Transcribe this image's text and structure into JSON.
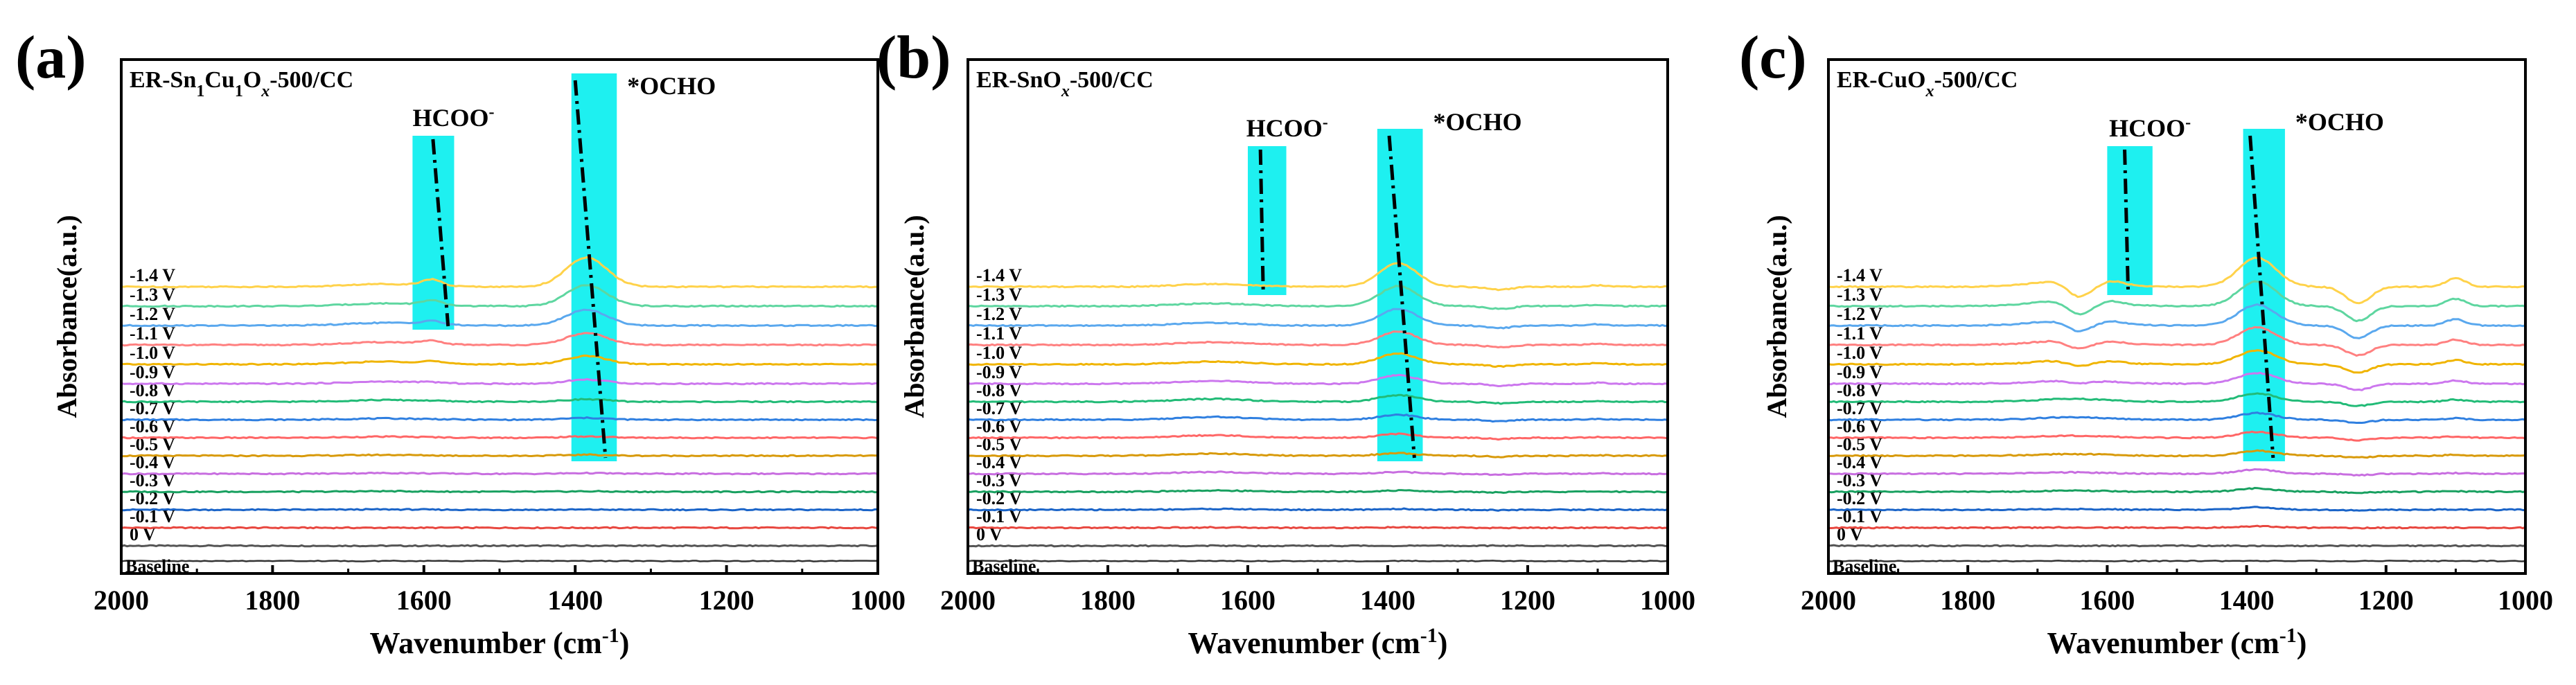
{
  "chart_data": [
    {
      "type": "line",
      "panel": "(a)",
      "sample_main": "ER-Sn",
      "sample_sub1": "1",
      "sample_mid": "Cu",
      "sample_sub2": "1",
      "sample_mid2": "O",
      "sample_sub3": "x",
      "sample_tail": "-500/CC",
      "xlabel_main": "Wavenumber (cm",
      "xlabel_sup": "-1",
      "xlabel_end": ")",
      "ylabel": "Absorbance(a.u.)",
      "xlim": [
        2000,
        1000
      ],
      "xticks": [
        "2000",
        "1800",
        "1600",
        "1400",
        "1200",
        "1000"
      ],
      "hcoo_label": "HCOO",
      "hcoo_sup": "-",
      "ocho_label": "*OCHO",
      "hcoo_band": [
        1615,
        1560
      ],
      "ocho_band": [
        1405,
        1345
      ],
      "hcoo_line": [
        1588,
        1568
      ],
      "ocho_line": [
        1400,
        1360
      ],
      "baseline_label": "Baseline",
      "voltages": [
        "0 V",
        "-0.1 V",
        "-0.2 V",
        "-0.3 V",
        "-0.4 V",
        "-0.5 V",
        "-0.6 V",
        "-0.7 V",
        "-0.8 V",
        "-0.9 V",
        "-1.0 V",
        "-1.1 V",
        "-1.2 V",
        "-1.3 V",
        "-1.4 V"
      ],
      "series_params": {
        "hcoo_amp": [
          0,
          0,
          0,
          0,
          0,
          0,
          0.01,
          0.02,
          0.04,
          0.1,
          0.25,
          0.35,
          0.45,
          0.55,
          0.75
        ],
        "ocho_amp": [
          0,
          0,
          0.02,
          0.05,
          0.08,
          0.12,
          0.16,
          0.22,
          0.3,
          0.5,
          1.0,
          1.4,
          1.9,
          2.5,
          3.5
        ],
        "hump_1650_amp": [
          0,
          0,
          0.05,
          0.08,
          0.1,
          0.12,
          0.15,
          0.18,
          0.25,
          0.3,
          0.4,
          0.4,
          0.4,
          0.4,
          0.4
        ],
        "dip_1250_amp": [
          0,
          0,
          0,
          0,
          0,
          0,
          0,
          0,
          0,
          0,
          0,
          0,
          0,
          0,
          0
        ]
      }
    },
    {
      "type": "line",
      "panel": "(b)",
      "sample_main": "ER-SnO",
      "sample_sub1": "x",
      "sample_tail": "-500/CC",
      "xlabel_main": "Wavenumber (cm",
      "xlabel_sup": "-1",
      "xlabel_end": ")",
      "ylabel": "Absorbance(a.u.)",
      "xlim": [
        2000,
        1000
      ],
      "xticks": [
        "2000",
        "1800",
        "1600",
        "1400",
        "1200",
        "1000"
      ],
      "hcoo_label": "HCOO",
      "hcoo_sup": "-",
      "ocho_label": "*OCHO",
      "hcoo_band": [
        1600,
        1545
      ],
      "ocho_band": [
        1415,
        1350
      ],
      "hcoo_line": [
        1582,
        1578
      ],
      "ocho_line": [
        1398,
        1362
      ],
      "baseline_label": "Baseline",
      "voltages": [
        "0 V",
        "-0.1 V",
        "-0.2 V",
        "-0.3 V",
        "-0.4 V",
        "-0.5 V",
        "-0.6 V",
        "-0.7 V",
        "-0.8 V",
        "-0.9 V",
        "-1.0 V",
        "-1.1 V",
        "-1.2 V",
        "-1.3 V",
        "-1.4 V"
      ],
      "series_params": {
        "hcoo_amp": [
          0,
          0,
          0,
          0,
          0,
          0,
          0,
          0,
          0,
          0,
          0,
          0,
          0,
          0,
          0
        ],
        "ocho_amp": [
          0,
          0.05,
          0.1,
          0.15,
          0.2,
          0.3,
          0.45,
          0.6,
          0.8,
          1.0,
          1.3,
          1.6,
          2.0,
          2.4,
          2.8
        ],
        "hump_1650_amp": [
          0,
          0.05,
          0.12,
          0.18,
          0.25,
          0.3,
          0.35,
          0.4,
          0.4,
          0.4,
          0.4,
          0.4,
          0.4,
          0.4,
          0.4
        ],
        "dip_1250_amp": [
          0,
          0.1,
          0.2,
          0.3,
          0.4,
          0.5,
          0.6,
          0.7,
          0.8,
          0.9,
          1.0,
          1.1,
          1.2,
          1.3,
          1.4
        ]
      }
    },
    {
      "type": "line",
      "panel": "(c)",
      "sample_main": "ER-CuO",
      "sample_sub1": "x",
      "sample_tail": "-500/CC",
      "xlabel_main": "Wavenumber (cm",
      "xlabel_sup": "-1",
      "xlabel_end": ")",
      "ylabel": "Absorbance(a.u.)",
      "xlim": [
        2000,
        1000
      ],
      "xticks": [
        "2000",
        "1800",
        "1600",
        "1400",
        "1200",
        "1000"
      ],
      "hcoo_label": "HCOO",
      "hcoo_sup": "-",
      "ocho_label": "*OCHO",
      "hcoo_band": [
        1600,
        1535
      ],
      "ocho_band": [
        1405,
        1345
      ],
      "hcoo_line": [
        1575,
        1570
      ],
      "ocho_line": [
        1395,
        1362
      ],
      "baseline_label": "Baseline",
      "voltages": [
        "0 V",
        "-0.1 V",
        "-0.2 V",
        "-0.3 V",
        "-0.4 V",
        "-0.5 V",
        "-0.6 V",
        "-0.7 V",
        "-0.8 V",
        "-0.9 V",
        "-1.0 V",
        "-1.1 V",
        "-1.2 V",
        "-1.3 V",
        "-1.4 V"
      ],
      "series_params": {
        "hcoo_amp": [
          0,
          0,
          0,
          0,
          0,
          0,
          0,
          0,
          0,
          0.05,
          0.1,
          0.15,
          0.2,
          0.25,
          0.3
        ],
        "ocho_amp": [
          0,
          0.2,
          0.3,
          0.4,
          0.5,
          0.6,
          0.7,
          0.8,
          1.0,
          1.3,
          1.7,
          2.1,
          2.5,
          3.0,
          3.5
        ],
        "hump_1650_amp": [
          0,
          0.05,
          0.1,
          0.15,
          0.2,
          0.25,
          0.3,
          0.35,
          0.4,
          0.5,
          0.6,
          0.7,
          0.8,
          0.9,
          1.0
        ],
        "dip_1250_amp": [
          0,
          0.1,
          0.3,
          0.5,
          0.7,
          0.9,
          1.2,
          1.5,
          2.0,
          3.0,
          4.0,
          5.0,
          6.0,
          7.0,
          8.0
        ]
      }
    }
  ],
  "colors": {
    "band": "#1EF0F0",
    "series": [
      "#555555",
      "#e8473f",
      "#1a64c8",
      "#18a060",
      "#c86ee0",
      "#d89a0a",
      "#ff6666",
      "#2f7fe0",
      "#22bb77",
      "#cc77ee",
      "#f0b400",
      "#ff8080",
      "#5aa8ee",
      "#5ed6a0",
      "#e8a8ff"
    ],
    "top_series": "#ffd24a",
    "frame": "#000000"
  }
}
